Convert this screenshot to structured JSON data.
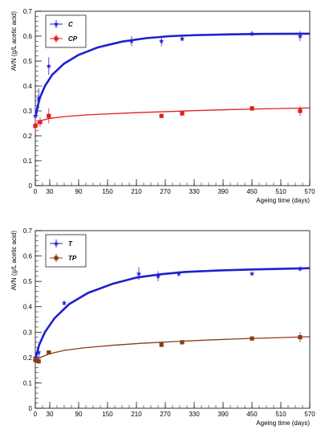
{
  "chart_data": [
    {
      "type": "scatter",
      "xlabel": "Ageing time (days)",
      "ylabel": "AVN (g/L acetic acid)",
      "xlim": [
        0,
        570
      ],
      "ylim": [
        0,
        0.7
      ],
      "xticks": [
        "0",
        "30",
        "90",
        "150",
        "210",
        "270",
        "330",
        "390",
        "450",
        "510",
        "570"
      ],
      "yticks": [
        "0",
        "0.1",
        "0.2",
        "0.3",
        "0.4",
        "0.5",
        "0.6",
        "0.7"
      ],
      "grid": false,
      "legend_position": "top-left",
      "series": [
        {
          "name": "C",
          "color": "#1f1fd0",
          "marker": "star",
          "points": [
            {
              "x": 0,
              "y": 0.28,
              "err": 0.03
            },
            {
              "x": 7,
              "y": 0.35,
              "err": 0.04
            },
            {
              "x": 28,
              "y": 0.48,
              "err": 0.035
            },
            {
              "x": 200,
              "y": 0.58,
              "err": 0.02
            },
            {
              "x": 262,
              "y": 0.58,
              "err": 0.02
            },
            {
              "x": 305,
              "y": 0.59,
              "err": 0.01
            },
            {
              "x": 450,
              "y": 0.61,
              "err": 0.01
            },
            {
              "x": 550,
              "y": 0.6,
              "err": 0.02
            }
          ],
          "fit": [
            [
              1,
              0.28
            ],
            [
              5,
              0.32
            ],
            [
              10,
              0.355
            ],
            [
              20,
              0.4
            ],
            [
              35,
              0.445
            ],
            [
              60,
              0.49
            ],
            [
              90,
              0.525
            ],
            [
              130,
              0.555
            ],
            [
              180,
              0.578
            ],
            [
              230,
              0.592
            ],
            [
              280,
              0.6
            ],
            [
              330,
              0.604
            ],
            [
              400,
              0.607
            ],
            [
              470,
              0.609
            ],
            [
              570,
              0.61
            ]
          ]
        },
        {
          "name": "CP",
          "color": "#e01f1f",
          "marker": "square",
          "points": [
            {
              "x": 0,
              "y": 0.24,
              "err": 0.025
            },
            {
              "x": 10,
              "y": 0.255,
              "err": 0.02
            },
            {
              "x": 28,
              "y": 0.28,
              "err": 0.03
            },
            {
              "x": 262,
              "y": 0.28,
              "err": 0.005
            },
            {
              "x": 305,
              "y": 0.29,
              "err": 0.01
            },
            {
              "x": 450,
              "y": 0.31,
              "err": 0.01
            },
            {
              "x": 550,
              "y": 0.3,
              "err": 0.02
            }
          ],
          "fit": [
            [
              1,
              0.245
            ],
            [
              10,
              0.26
            ],
            [
              30,
              0.27
            ],
            [
              60,
              0.277
            ],
            [
              100,
              0.283
            ],
            [
              150,
              0.288
            ],
            [
              210,
              0.293
            ],
            [
              270,
              0.297
            ],
            [
              330,
              0.301
            ],
            [
              400,
              0.305
            ],
            [
              470,
              0.308
            ],
            [
              570,
              0.312
            ]
          ]
        }
      ]
    },
    {
      "type": "scatter",
      "xlabel": "Ageing time (days)",
      "ylabel": "AVN (g/L acetic acid)",
      "xlim": [
        0,
        570
      ],
      "ylim": [
        0,
        0.7
      ],
      "xticks": [
        "0",
        "30",
        "90",
        "150",
        "210",
        "270",
        "330",
        "390",
        "450",
        "510",
        "570"
      ],
      "yticks": [
        "0",
        "0.1",
        "0.2",
        "0.3",
        "0.4",
        "0.5",
        "0.6",
        "0.7"
      ],
      "grid": false,
      "legend_position": "top-left",
      "series": [
        {
          "name": "T",
          "color": "#1f1fd0",
          "marker": "star",
          "points": [
            {
              "x": 0,
              "y": 0.2,
              "err": 0.02
            },
            {
              "x": 7,
              "y": 0.22,
              "err": 0.02
            },
            {
              "x": 60,
              "y": 0.415,
              "err": 0.01
            },
            {
              "x": 215,
              "y": 0.53,
              "err": 0.025
            },
            {
              "x": 255,
              "y": 0.52,
              "err": 0.02
            },
            {
              "x": 298,
              "y": 0.53,
              "err": 0.01
            },
            {
              "x": 450,
              "y": 0.53,
              "err": 0.005
            },
            {
              "x": 550,
              "y": 0.55,
              "err": 0.01
            }
          ],
          "fit": [
            [
              1,
              0.2
            ],
            [
              8,
              0.25
            ],
            [
              20,
              0.3
            ],
            [
              40,
              0.355
            ],
            [
              70,
              0.41
            ],
            [
              110,
              0.455
            ],
            [
              160,
              0.49
            ],
            [
              210,
              0.515
            ],
            [
              260,
              0.528
            ],
            [
              310,
              0.537
            ],
            [
              380,
              0.543
            ],
            [
              450,
              0.547
            ],
            [
              570,
              0.552
            ]
          ]
        },
        {
          "name": "TP",
          "color": "#8b3a1a",
          "marker": "square",
          "points": [
            {
              "x": 0,
              "y": 0.19,
              "err": 0.02
            },
            {
              "x": 7,
              "y": 0.185,
              "err": 0.01
            },
            {
              "x": 28,
              "y": 0.22,
              "err": 0.005
            },
            {
              "x": 262,
              "y": 0.25,
              "err": 0.005
            },
            {
              "x": 305,
              "y": 0.26,
              "err": 0.005
            },
            {
              "x": 450,
              "y": 0.275,
              "err": 0.005
            },
            {
              "x": 550,
              "y": 0.28,
              "err": 0.02
            }
          ],
          "fit": [
            [
              1,
              0.19
            ],
            [
              10,
              0.2
            ],
            [
              30,
              0.215
            ],
            [
              60,
              0.228
            ],
            [
              100,
              0.238
            ],
            [
              160,
              0.248
            ],
            [
              220,
              0.256
            ],
            [
              290,
              0.263
            ],
            [
              360,
              0.269
            ],
            [
              430,
              0.274
            ],
            [
              500,
              0.278
            ],
            [
              570,
              0.282
            ]
          ]
        }
      ]
    }
  ]
}
